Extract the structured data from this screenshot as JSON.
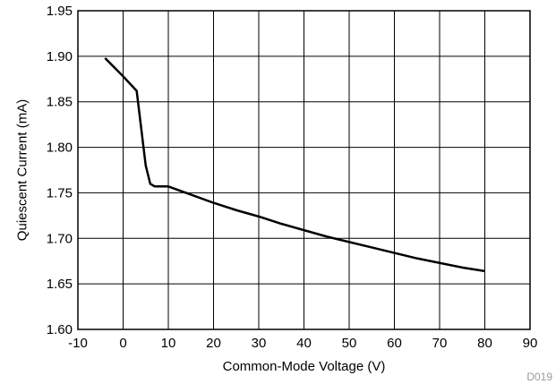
{
  "chart_data": {
    "type": "line",
    "xlabel": "Common-Mode Voltage (V)",
    "ylabel": "Quiescent Current (mA)",
    "xlim": [
      -10,
      90
    ],
    "ylim": [
      1.6,
      1.95
    ],
    "x_ticks": [
      -10,
      0,
      10,
      20,
      30,
      40,
      50,
      60,
      70,
      80,
      90
    ],
    "y_ticks": [
      1.6,
      1.65,
      1.7,
      1.75,
      1.8,
      1.85,
      1.9,
      1.95
    ],
    "x_tick_labels": [
      "-10",
      "0",
      "10",
      "20",
      "30",
      "40",
      "50",
      "60",
      "70",
      "80",
      "90"
    ],
    "y_tick_labels": [
      "1.60",
      "1.65",
      "1.70",
      "1.75",
      "1.80",
      "1.85",
      "1.90",
      "1.95"
    ],
    "grid": true,
    "series": [
      {
        "x": [
          -4,
          0,
          3,
          5,
          6,
          7,
          9,
          10,
          15,
          20,
          25,
          30,
          35,
          40,
          45,
          50,
          55,
          60,
          65,
          70,
          75,
          80
        ],
        "y": [
          1.898,
          1.878,
          1.862,
          1.78,
          1.76,
          1.757,
          1.757,
          1.757,
          1.748,
          1.739,
          1.731,
          1.724,
          1.716,
          1.709,
          1.702,
          1.696,
          1.69,
          1.684,
          1.678,
          1.673,
          1.668,
          1.664
        ]
      }
    ],
    "code": "D019"
  }
}
